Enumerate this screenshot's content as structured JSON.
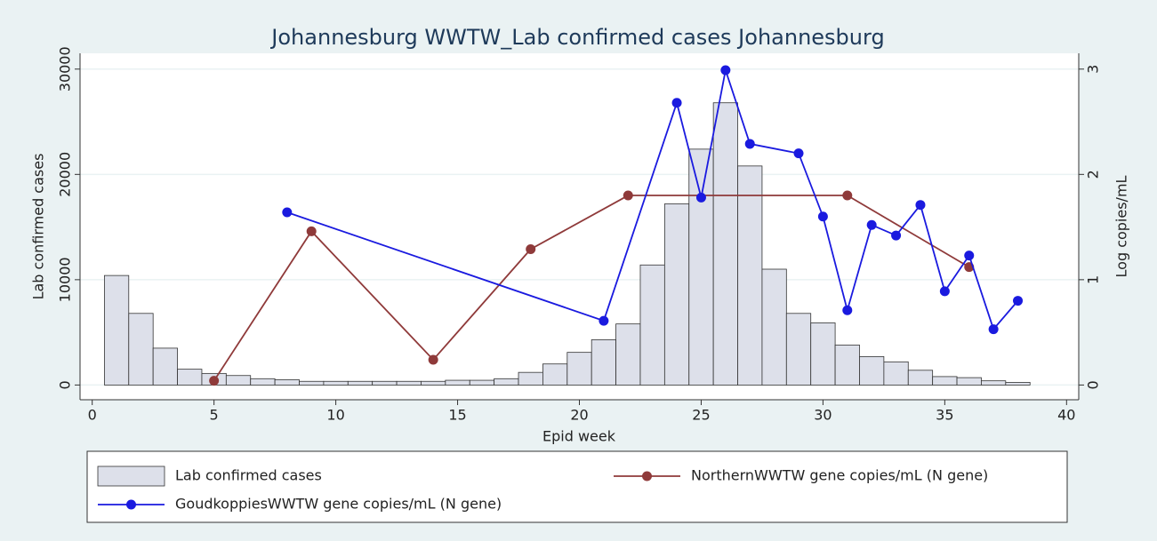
{
  "chart_data": {
    "type": "bar",
    "title": "Johannesburg WWTW_Lab confirmed cases Johannesburg",
    "x_label": "Epid week",
    "y_label": "Lab confirmed cases",
    "y2_label": "Log copies/mL",
    "xlim": [
      -0.5,
      40.5
    ],
    "xticks": [
      0,
      5,
      10,
      15,
      20,
      25,
      30,
      35,
      40
    ],
    "ylim": [
      -1400,
      31500
    ],
    "yticks": [
      0,
      10000,
      20000,
      30000
    ],
    "y2lim": [
      -0.14,
      3.15
    ],
    "y2ticks": [
      0,
      1,
      2,
      3
    ],
    "grid": true,
    "series": [
      {
        "name": "Lab confirmed cases",
        "type": "bar",
        "color": "#dde0ea",
        "x": [
          1,
          2,
          3,
          4,
          5,
          6,
          7,
          8,
          9,
          10,
          11,
          12,
          13,
          14,
          15,
          16,
          17,
          18,
          19,
          20,
          21,
          22,
          23,
          24,
          25,
          26,
          27,
          28,
          29,
          30,
          31,
          32,
          33,
          34,
          35,
          36,
          37,
          38
        ],
        "values": [
          10400,
          6800,
          3500,
          1500,
          1100,
          900,
          600,
          500,
          350,
          350,
          350,
          350,
          350,
          350,
          450,
          450,
          600,
          1200,
          2000,
          3100,
          4300,
          5800,
          11400,
          17200,
          22400,
          26800,
          20800,
          11000,
          6800,
          5900,
          3800,
          2700,
          2200,
          1400,
          800,
          700,
          400,
          250
        ]
      },
      {
        "name": "NorthernWWTW gene copies/mL (N gene)",
        "type": "line",
        "axis": "y2",
        "color": "#8f3a3a",
        "x": [
          5,
          9,
          14,
          18,
          22,
          31,
          36
        ],
        "values": [
          0.04,
          1.46,
          0.24,
          1.29,
          1.8,
          1.8,
          1.12
        ]
      },
      {
        "name": "GoudkoppiesWWTW gene copies/mL (N gene)",
        "type": "line",
        "axis": "y2",
        "color": "#1a1adf",
        "x": [
          8,
          21,
          24,
          25,
          26,
          27,
          29,
          30,
          31,
          32,
          33,
          34,
          35,
          36,
          37,
          38
        ],
        "values": [
          1.64,
          0.61,
          2.68,
          1.78,
          2.99,
          2.29,
          2.2,
          1.6,
          0.71,
          1.52,
          1.42,
          1.71,
          0.89,
          1.23,
          0.53,
          0.8
        ]
      }
    ]
  }
}
